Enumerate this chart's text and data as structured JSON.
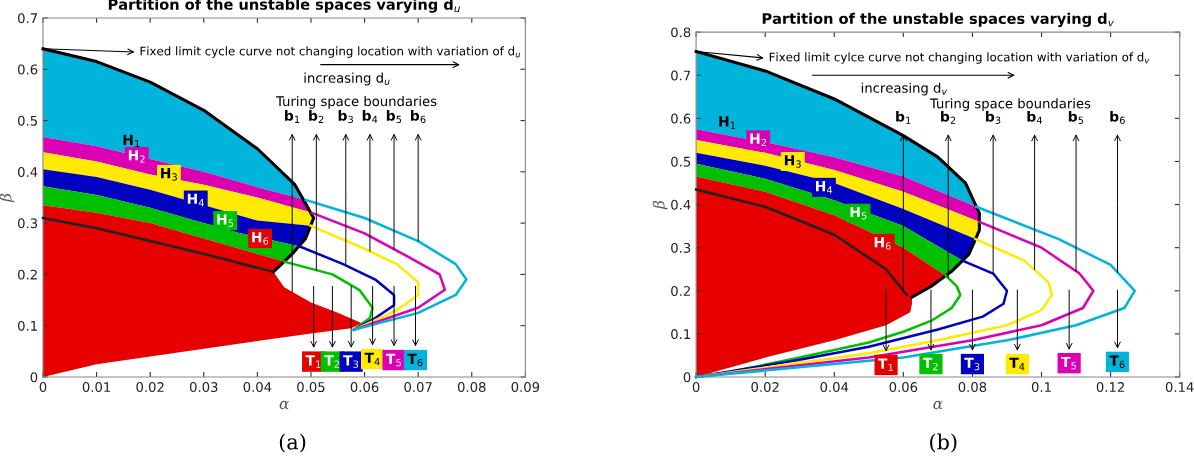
{
  "chart_data": [
    {
      "type": "area",
      "title": "Partition of the unstable spaces varying d$_{u}$",
      "xlabel": "α",
      "ylabel": "β",
      "xlim": [
        0,
        0.09
      ],
      "ylim": [
        0,
        0.7
      ],
      "xticks": [
        0,
        0.01,
        0.02,
        0.03,
        0.04,
        0.05,
        0.06,
        0.07,
        0.08,
        0.09
      ],
      "yticks": [
        0,
        0.1,
        0.2,
        0.3,
        0.4,
        0.5,
        0.6,
        0.7
      ],
      "grid": false,
      "series": [
        {
          "color": "#00b4dc",
          "x": [
            0,
            0.01,
            0.02,
            0.03,
            0.04,
            0.047,
            0.049,
            0.04,
            0.03,
            0.02,
            0.01,
            0
          ],
          "values": [
            0.64,
            0.615,
            0.575,
            0.52,
            0.445,
            0.375,
            0.345,
            0.37,
            0.4,
            0.425,
            0.45,
            0.468
          ]
        },
        {
          "color": "#dc00b4",
          "x": [
            0,
            0.01,
            0.02,
            0.03,
            0.04,
            0.049,
            0.0502,
            0.04,
            0.03,
            0.02,
            0.01,
            0
          ],
          "values": [
            0.468,
            0.45,
            0.425,
            0.4,
            0.37,
            0.345,
            0.32,
            0.35,
            0.375,
            0.395,
            0.42,
            0.438
          ]
        },
        {
          "color": "#ffea00",
          "x": [
            0,
            0.01,
            0.02,
            0.03,
            0.04,
            0.0502,
            0.0505,
            0.0499,
            0.04,
            0.032,
            0.02,
            0.01,
            0
          ],
          "values": [
            0.438,
            0.42,
            0.395,
            0.375,
            0.35,
            0.32,
            0.31,
            0.295,
            0.305,
            0.329,
            0.365,
            0.39,
            0.405
          ]
        },
        {
          "color": "#0000c0",
          "x": [
            0,
            0.01,
            0.02,
            0.032,
            0.04,
            0.0499,
            0.049,
            0.0478,
            0.036,
            0.027,
            0.02,
            0.01,
            0
          ],
          "values": [
            0.405,
            0.39,
            0.365,
            0.329,
            0.305,
            0.295,
            0.27,
            0.255,
            0.282,
            0.309,
            0.33,
            0.355,
            0.372
          ]
        },
        {
          "color": "#00c000",
          "x": [
            0,
            0.01,
            0.02,
            0.027,
            0.036,
            0.0478,
            0.0465,
            0.045,
            0.04,
            0.03,
            0.02,
            0.01,
            0
          ],
          "values": [
            0.372,
            0.355,
            0.33,
            0.309,
            0.282,
            0.255,
            0.24,
            0.225,
            0.24,
            0.27,
            0.3,
            0.32,
            0.335
          ]
        },
        {
          "color": "#e60000",
          "x": [
            0,
            0.01,
            0.02,
            0.03,
            0.04,
            0.045,
            0.043,
            0.045,
            0.05,
            0.055,
            0.0595,
            0.0575,
            0.05,
            0.04,
            0.03,
            0.02,
            0.01,
            0
          ],
          "values": [
            0.335,
            0.32,
            0.3,
            0.27,
            0.24,
            0.225,
            0.205,
            0.175,
            0.145,
            0.125,
            0.105,
            0.095,
            0.085,
            0.07,
            0.055,
            0.04,
            0.025,
            0
          ]
        },
        {
          "type": "line",
          "color": "#000000",
          "x": [
            0,
            0.01,
            0.02,
            0.03,
            0.04,
            0.047,
            0.0505,
            0.049,
            0.0465,
            0.043
          ],
          "values": [
            0.64,
            0.615,
            0.575,
            0.52,
            0.445,
            0.375,
            0.31,
            0.27,
            0.24,
            0.205
          ]
        },
        {
          "type": "line",
          "color": "#222222",
          "x": [
            0,
            0.01,
            0.02,
            0.03,
            0.043
          ],
          "values": [
            0.31,
            0.29,
            0.265,
            0.24,
            0.205
          ]
        },
        {
          "type": "line",
          "color": "#00c000",
          "x": [
            0.045,
            0.054,
            0.059,
            0.0615,
            0.061,
            0.058
          ],
          "values": [
            0.225,
            0.2,
            0.17,
            0.135,
            0.115,
            0.092
          ]
        },
        {
          "type": "line",
          "color": "#0000c0",
          "x": [
            0.0478,
            0.056,
            0.062,
            0.0655,
            0.0655,
            0.062,
            0.058
          ],
          "values": [
            0.255,
            0.22,
            0.19,
            0.16,
            0.14,
            0.115,
            0.092
          ]
        },
        {
          "type": "line",
          "color": "#ffea00",
          "x": [
            0.0499,
            0.06,
            0.066,
            0.07,
            0.07,
            0.066,
            0.058
          ],
          "values": [
            0.295,
            0.25,
            0.22,
            0.185,
            0.16,
            0.13,
            0.092
          ]
        },
        {
          "type": "line",
          "color": "#dc00b4",
          "x": [
            0.0502,
            0.06,
            0.068,
            0.074,
            0.075,
            0.07,
            0.058
          ],
          "values": [
            0.32,
            0.28,
            0.235,
            0.2,
            0.17,
            0.135,
            0.092
          ]
        },
        {
          "type": "line",
          "color": "#00b4dc",
          "x": [
            0.049,
            0.06,
            0.07,
            0.077,
            0.079,
            0.077,
            0.07,
            0.058
          ],
          "values": [
            0.345,
            0.31,
            0.265,
            0.22,
            0.19,
            0.16,
            0.125,
            0.092
          ]
        }
      ],
      "annotations": [
        {
          "text": "Fixed limit cycle curve not changing location with variation of d$_{u}$",
          "x": 0,
          "y": 0.64
        },
        "increasing d$_{u}$",
        "Turing space boundaries",
        {
          "text": "b$_{1}$",
          "x": 0.0465,
          "y": 0.165
        },
        {
          "text": "b$_{2}$",
          "x": 0.051,
          "y": 0.208
        },
        {
          "text": "b$_{3}$",
          "x": 0.0565,
          "y": 0.217
        },
        {
          "text": "b$_{4}$",
          "x": 0.061,
          "y": 0.245
        },
        {
          "text": "b$_{5}$",
          "x": 0.0655,
          "y": 0.249
        },
        {
          "text": "b$_{6}$",
          "x": 0.07,
          "y": 0.265
        },
        {
          "text": "H$_{1}$",
          "x": 0.0165,
          "y": 0.46
        },
        {
          "text": "H$_{2}$",
          "x": 0.0175,
          "y": 0.43
        },
        {
          "text": "H$_{3}$",
          "x": 0.0235,
          "y": 0.395
        },
        {
          "text": "H$_{4}$",
          "x": 0.0285,
          "y": 0.345
        },
        {
          "text": "H$_{5}$",
          "x": 0.034,
          "y": 0.305
        },
        {
          "text": "H$_{6}$",
          "x": 0.0405,
          "y": 0.27
        },
        {
          "text": "T$_{1}$",
          "x": 0.0505,
          "y": 0.03
        },
        {
          "text": "T$_{2}$",
          "x": 0.054,
          "y": 0.03
        },
        {
          "text": "T$_{3}$",
          "x": 0.0575,
          "y": 0.03
        },
        {
          "text": "T$_{4}$",
          "x": 0.0615,
          "y": 0.035
        },
        {
          "text": "T$_{5}$",
          "x": 0.0655,
          "y": 0.033
        },
        {
          "text": "T$_{6}$",
          "x": 0.0695,
          "y": 0.033
        },
        "(a)"
      ]
    },
    {
      "type": "area",
      "title": "Partition of the unstable spaces varying d$_{v}$",
      "xlabel": "α",
      "ylabel": "β",
      "xlim": [
        0,
        0.14
      ],
      "ylim": [
        0,
        0.8
      ],
      "xticks": [
        0,
        0.02,
        0.04,
        0.06,
        0.08,
        0.1,
        0.12,
        0.14
      ],
      "yticks": [
        0,
        0.1,
        0.2,
        0.3,
        0.4,
        0.5,
        0.6,
        0.7,
        0.8
      ],
      "grid": false,
      "series": [
        {
          "color": "#00b4dc",
          "x": [
            0,
            0.02,
            0.04,
            0.06,
            0.07,
            0.078,
            0.0811,
            0.06,
            0.04,
            0.024,
            0
          ],
          "values": [
            0.755,
            0.71,
            0.645,
            0.56,
            0.51,
            0.45,
            0.395,
            0.465,
            0.51,
            0.538,
            0.575
          ]
        },
        {
          "color": "#dc00b4",
          "x": [
            0,
            0.024,
            0.04,
            0.06,
            0.0811,
            0.082,
            0.082,
            0.06,
            0.04,
            0.02,
            0
          ],
          "values": [
            0.575,
            0.538,
            0.51,
            0.465,
            0.395,
            0.38,
            0.36,
            0.43,
            0.48,
            0.52,
            0.55
          ]
        },
        {
          "color": "#ffea00",
          "x": [
            0,
            0.02,
            0.04,
            0.06,
            0.082,
            0.082,
            0.0809,
            0.06,
            0.04,
            0.02,
            0
          ],
          "values": [
            0.55,
            0.52,
            0.48,
            0.43,
            0.36,
            0.34,
            0.32,
            0.39,
            0.45,
            0.49,
            0.52
          ]
        },
        {
          "color": "#0000c0",
          "x": [
            0,
            0.02,
            0.04,
            0.06,
            0.0809,
            0.079,
            0.0771,
            0.06,
            0.04,
            0.02,
            0
          ],
          "values": [
            0.52,
            0.49,
            0.45,
            0.39,
            0.32,
            0.285,
            0.27,
            0.35,
            0.41,
            0.46,
            0.495
          ]
        },
        {
          "color": "#00c000",
          "x": [
            0,
            0.02,
            0.04,
            0.06,
            0.0771,
            0.074,
            0.0723,
            0.06,
            0.04,
            0.02,
            0
          ],
          "values": [
            0.495,
            0.46,
            0.41,
            0.35,
            0.27,
            0.245,
            0.235,
            0.3,
            0.375,
            0.43,
            0.465
          ]
        },
        {
          "color": "#e60000",
          "x": [
            0,
            0.02,
            0.04,
            0.06,
            0.0723,
            0.068,
            0.0625,
            0.0625,
            0.062,
            0.055,
            0.04,
            0.02,
            0
          ],
          "values": [
            0.465,
            0.43,
            0.375,
            0.3,
            0.235,
            0.21,
            0.185,
            0.17,
            0.15,
            0.12,
            0.085,
            0.045,
            0
          ]
        },
        {
          "type": "line",
          "color": "#000000",
          "x": [
            0,
            0.02,
            0.04,
            0.06,
            0.07,
            0.078,
            0.082,
            0.082,
            0.079,
            0.074,
            0.068,
            0.0625
          ],
          "values": [
            0.755,
            0.71,
            0.645,
            0.56,
            0.51,
            0.45,
            0.38,
            0.34,
            0.285,
            0.245,
            0.21,
            0.185
          ]
        },
        {
          "type": "line",
          "color": "#222222",
          "x": [
            0,
            0.02,
            0.04,
            0.055,
            0.061
          ],
          "values": [
            0.435,
            0.395,
            0.33,
            0.25,
            0.19
          ]
        },
        {
          "type": "line",
          "color": "#00c000",
          "x": [
            0.0723,
            0.0755,
            0.0765,
            0.074,
            0.068,
            0.06,
            0.05,
            0.03,
            0.01,
            0
          ],
          "values": [
            0.235,
            0.21,
            0.19,
            0.16,
            0.13,
            0.105,
            0.08,
            0.045,
            0.012,
            0
          ]
        },
        {
          "type": "line",
          "color": "#0000c0",
          "x": [
            0.0771,
            0.086,
            0.09,
            0.089,
            0.083,
            0.07,
            0.05,
            0.03,
            0
          ],
          "values": [
            0.27,
            0.24,
            0.2,
            0.17,
            0.14,
            0.11,
            0.07,
            0.04,
            0
          ]
        },
        {
          "type": "line",
          "color": "#ffea00",
          "x": [
            0.0809,
            0.095,
            0.102,
            0.103,
            0.1,
            0.09,
            0.07,
            0.05,
            0
          ],
          "values": [
            0.32,
            0.27,
            0.22,
            0.19,
            0.155,
            0.12,
            0.085,
            0.055,
            0
          ]
        },
        {
          "type": "line",
          "color": "#dc00b4",
          "x": [
            0.082,
            0.1,
            0.111,
            0.115,
            0.112,
            0.1,
            0.08,
            0.05,
            0
          ],
          "values": [
            0.36,
            0.3,
            0.24,
            0.2,
            0.16,
            0.12,
            0.085,
            0.045,
            0
          ]
        },
        {
          "type": "line",
          "color": "#00b4dc",
          "x": [
            0.0811,
            0.105,
            0.12,
            0.127,
            0.124,
            0.11,
            0.09,
            0.06,
            0
          ],
          "values": [
            0.395,
            0.32,
            0.26,
            0.2,
            0.16,
            0.12,
            0.085,
            0.045,
            0
          ]
        }
      ],
      "annotations": [
        {
          "text": "Fixed limit cylce curve not changing location with variation of d$_{v}$",
          "x": 0,
          "y": 0.755
        },
        "increasing d$_{v}$",
        "Turing space boundaries",
        {
          "text": "b$_{1}$",
          "x": 0.06,
          "y": 0.2
        },
        {
          "text": "b$_{2}$",
          "x": 0.073,
          "y": 0.23
        },
        {
          "text": "b$_{3}$",
          "x": 0.086,
          "y": 0.24
        },
        {
          "text": "b$_{4}$",
          "x": 0.098,
          "y": 0.249
        },
        {
          "text": "b$_{5}$",
          "x": 0.11,
          "y": 0.245
        },
        {
          "text": "b$_{6}$",
          "x": 0.122,
          "y": 0.243
        },
        {
          "text": "H$_{1}$",
          "x": 0.009,
          "y": 0.59
        },
        {
          "text": "H$_{2}$",
          "x": 0.018,
          "y": 0.55
        },
        {
          "text": "H$_{3}$",
          "x": 0.028,
          "y": 0.5
        },
        {
          "text": "H$_{4}$",
          "x": 0.037,
          "y": 0.44
        },
        {
          "text": "H$_{5}$",
          "x": 0.047,
          "y": 0.38
        },
        {
          "text": "H$_{6}$",
          "x": 0.054,
          "y": 0.31
        },
        {
          "text": "T$_{1}$",
          "x": 0.055,
          "y": 0.028
        },
        {
          "text": "T$_{2}$",
          "x": 0.068,
          "y": 0.03
        },
        {
          "text": "T$_{3}$",
          "x": 0.08,
          "y": 0.03
        },
        {
          "text": "T$_{4}$",
          "x": 0.093,
          "y": 0.03
        },
        {
          "text": "T$_{5}$",
          "x": 0.108,
          "y": 0.032
        },
        {
          "text": "T$_{6}$",
          "x": 0.122,
          "y": 0.035
        },
        "(b)"
      ]
    }
  ]
}
